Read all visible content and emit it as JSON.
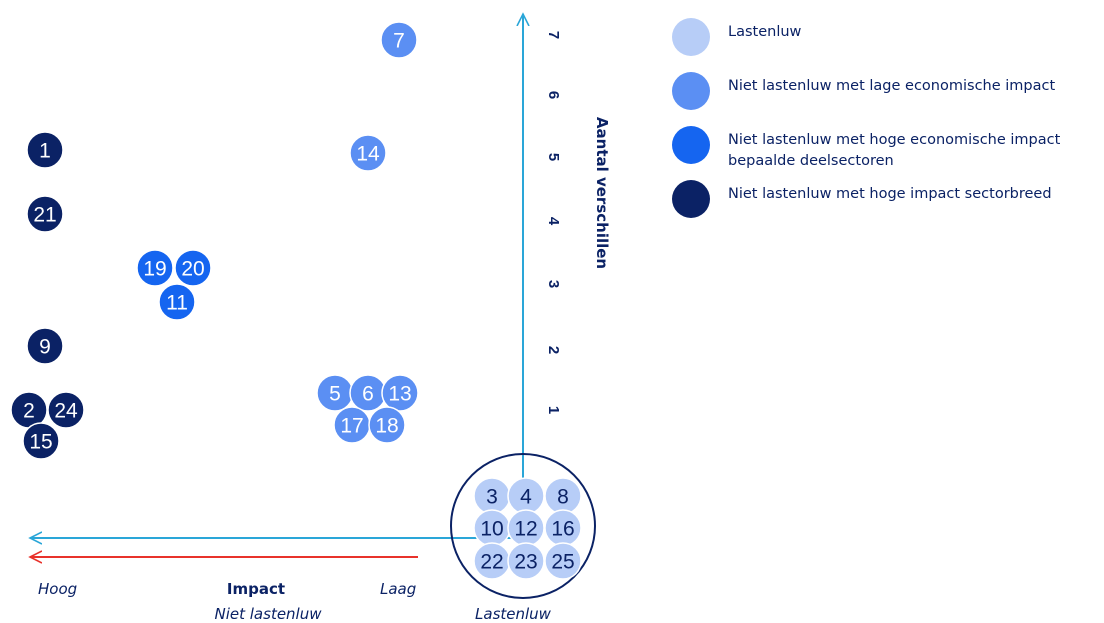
{
  "chart_data": {
    "type": "scatter",
    "ylabel": "Aantal verschillen",
    "y_ticks": [
      "1",
      "2",
      "3",
      "4",
      "5",
      "6",
      "7"
    ],
    "x_axis_labels": {
      "left": "Hoog",
      "center": "Impact",
      "right": "Laag",
      "left_group": "Niet lastenluw",
      "right_group": "Lastenluw"
    },
    "categories": [
      {
        "key": "lastenluw",
        "name": "Lastenluw",
        "color": "#b7cdf7"
      },
      {
        "key": "laag",
        "name": "Niet lastenluw met lage economische impact",
        "color": "#5b8ff3"
      },
      {
        "key": "hoog_deel",
        "name": "Niet lastenluw met hoge economische impact bepaalde deelsectoren",
        "color": "#1565f0"
      },
      {
        "key": "hoog_breed",
        "name": "Niet lastenluw met hoge impact sectorbreed",
        "color": "#0b2265"
      }
    ],
    "points": [
      {
        "label": "7",
        "category": "laag",
        "y": 7
      },
      {
        "label": "14",
        "category": "laag",
        "y": 5
      },
      {
        "label": "1",
        "category": "hoog_breed",
        "y": 5
      },
      {
        "label": "21",
        "category": "hoog_breed",
        "y": 4
      },
      {
        "label": "19",
        "category": "hoog_deel",
        "y": 3
      },
      {
        "label": "20",
        "category": "hoog_deel",
        "y": 3
      },
      {
        "label": "11",
        "category": "hoog_deel",
        "y": 3
      },
      {
        "label": "9",
        "category": "hoog_breed",
        "y": 2
      },
      {
        "label": "2",
        "category": "hoog_breed",
        "y": 1
      },
      {
        "label": "24",
        "category": "hoog_breed",
        "y": 1
      },
      {
        "label": "15",
        "category": "hoog_breed",
        "y": 1
      },
      {
        "label": "5",
        "category": "laag",
        "y": 1
      },
      {
        "label": "6",
        "category": "laag",
        "y": 1
      },
      {
        "label": "13",
        "category": "laag",
        "y": 1
      },
      {
        "label": "17",
        "category": "laag",
        "y": 1
      },
      {
        "label": "18",
        "category": "laag",
        "y": 1
      },
      {
        "label": "3",
        "category": "lastenluw",
        "y": 0
      },
      {
        "label": "4",
        "category": "lastenluw",
        "y": 0
      },
      {
        "label": "8",
        "category": "lastenluw",
        "y": 0
      },
      {
        "label": "10",
        "category": "lastenluw",
        "y": 0
      },
      {
        "label": "12",
        "category": "lastenluw",
        "y": 0
      },
      {
        "label": "16",
        "category": "lastenluw",
        "y": 0
      },
      {
        "label": "22",
        "category": "lastenluw",
        "y": 0
      },
      {
        "label": "23",
        "category": "lastenluw",
        "y": 0
      },
      {
        "label": "25",
        "category": "lastenluw",
        "y": 0
      }
    ],
    "colors": {
      "axis": "#2aa6d8",
      "impact_arrow": "#e8322b",
      "text": "#0b2265"
    }
  }
}
